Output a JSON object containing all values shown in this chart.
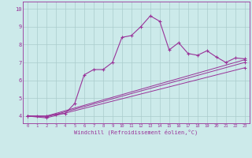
{
  "background_color": "#cceaea",
  "grid_color": "#aacccc",
  "line_color": "#993399",
  "xlim": [
    -0.5,
    23.5
  ],
  "ylim": [
    3.6,
    10.4
  ],
  "xticks": [
    0,
    1,
    2,
    3,
    4,
    5,
    6,
    7,
    8,
    9,
    10,
    11,
    12,
    13,
    14,
    15,
    16,
    17,
    18,
    19,
    20,
    21,
    22,
    23
  ],
  "yticks": [
    4,
    5,
    6,
    7,
    8,
    9,
    10
  ],
  "xlabel": "Windchill (Refroidissement éolien,°C)",
  "series1_x": [
    0,
    1,
    2,
    3,
    4,
    5,
    6,
    7,
    8,
    9,
    10,
    11,
    12,
    13,
    14,
    15,
    16,
    17,
    18,
    19,
    20,
    21,
    22,
    23
  ],
  "series1_y": [
    4.0,
    4.0,
    4.0,
    4.1,
    4.15,
    4.7,
    6.3,
    6.6,
    6.6,
    7.0,
    8.4,
    8.5,
    9.0,
    9.6,
    9.3,
    7.7,
    8.1,
    7.5,
    7.4,
    7.65,
    7.3,
    7.0,
    7.25,
    7.2
  ],
  "series2_x": [
    0,
    2,
    23
  ],
  "series2_y": [
    4.0,
    4.0,
    7.15
  ],
  "series3_x": [
    0,
    2,
    23
  ],
  "series3_y": [
    4.0,
    3.95,
    7.0
  ],
  "series4_x": [
    0,
    2,
    23
  ],
  "series4_y": [
    4.0,
    3.9,
    6.7
  ]
}
